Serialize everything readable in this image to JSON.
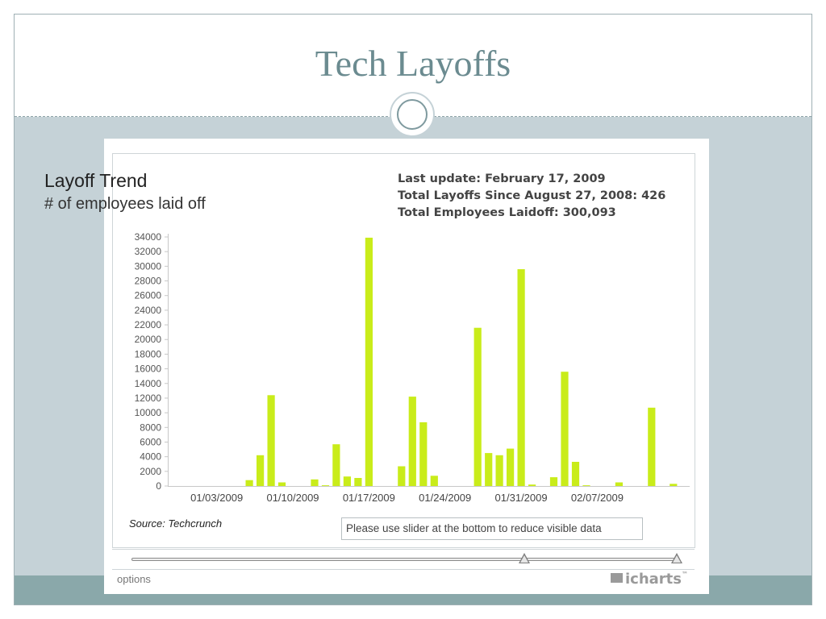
{
  "slide": {
    "title": "Tech Layoffs"
  },
  "widget": {
    "source": "Source: Techcrunch",
    "hint": "Please use slider at the bottom to reduce visible data",
    "options_label": "options",
    "brand": "icharts",
    "trademark": "™"
  },
  "info": {
    "line1": "Last update: February 17, 2009",
    "line2": "Total Layoffs Since August 27, 2008: 426",
    "line3": "Total Employees Laidoff: 300,093"
  },
  "slider": {
    "start_fraction": 0.72,
    "end_fraction": 1.0
  },
  "colors": {
    "bar": "#c9ec1a",
    "header_text": "#6b8b90",
    "band": "#8aa8aa",
    "background": "#c5d2d7"
  },
  "chart_data": {
    "type": "bar",
    "title": "Layoff Trend",
    "subtitle": "# of employees laid off",
    "ylim": [
      0,
      34000
    ],
    "ytick_values": [
      0,
      2000,
      4000,
      6000,
      8000,
      10000,
      12000,
      14000,
      16000,
      18000,
      20000,
      22000,
      24000,
      26000,
      28000,
      30000,
      32000,
      34000
    ],
    "ytick_labels": [
      "0",
      "2000",
      "4000",
      "6000",
      "8000",
      "10000",
      "12000",
      "14000",
      "16000",
      "18000",
      "20000",
      "22000",
      "24000",
      "26000",
      "28000",
      "30000",
      "32000",
      "34000"
    ],
    "xlim": [
      "2008-12-30",
      "2009-02-16"
    ],
    "xtick_labels": [
      "01/03/2009",
      "01/10/2009",
      "01/17/2009",
      "01/24/2009",
      "01/31/2009",
      "02/07/2009"
    ],
    "xtick_dates": [
      "2009-01-03",
      "2009-01-10",
      "2009-01-17",
      "2009-01-24",
      "2009-01-31",
      "2009-02-07"
    ],
    "grid": false,
    "bars": [
      {
        "date": "2009-01-06",
        "value": 800
      },
      {
        "date": "2009-01-07",
        "value": 4200
      },
      {
        "date": "2009-01-08",
        "value": 12400
      },
      {
        "date": "2009-01-09",
        "value": 500
      },
      {
        "date": "2009-01-12",
        "value": 900
      },
      {
        "date": "2009-01-13",
        "value": 100
      },
      {
        "date": "2009-01-14",
        "value": 5700
      },
      {
        "date": "2009-01-15",
        "value": 1300
      },
      {
        "date": "2009-01-16",
        "value": 1100
      },
      {
        "date": "2009-01-17",
        "value": 33900
      },
      {
        "date": "2009-01-20",
        "value": 2700
      },
      {
        "date": "2009-01-21",
        "value": 12200
      },
      {
        "date": "2009-01-22",
        "value": 8700
      },
      {
        "date": "2009-01-23",
        "value": 1400
      },
      {
        "date": "2009-01-27",
        "value": 21600
      },
      {
        "date": "2009-01-28",
        "value": 4500
      },
      {
        "date": "2009-01-29",
        "value": 4200
      },
      {
        "date": "2009-01-30",
        "value": 5100
      },
      {
        "date": "2009-01-31",
        "value": 29600
      },
      {
        "date": "2009-02-01",
        "value": 200
      },
      {
        "date": "2009-02-03",
        "value": 1200
      },
      {
        "date": "2009-02-04",
        "value": 15600
      },
      {
        "date": "2009-02-05",
        "value": 3300
      },
      {
        "date": "2009-02-06",
        "value": 100
      },
      {
        "date": "2009-02-09",
        "value": 500
      },
      {
        "date": "2009-02-12",
        "value": 10700
      },
      {
        "date": "2009-02-14",
        "value": 300
      }
    ]
  }
}
